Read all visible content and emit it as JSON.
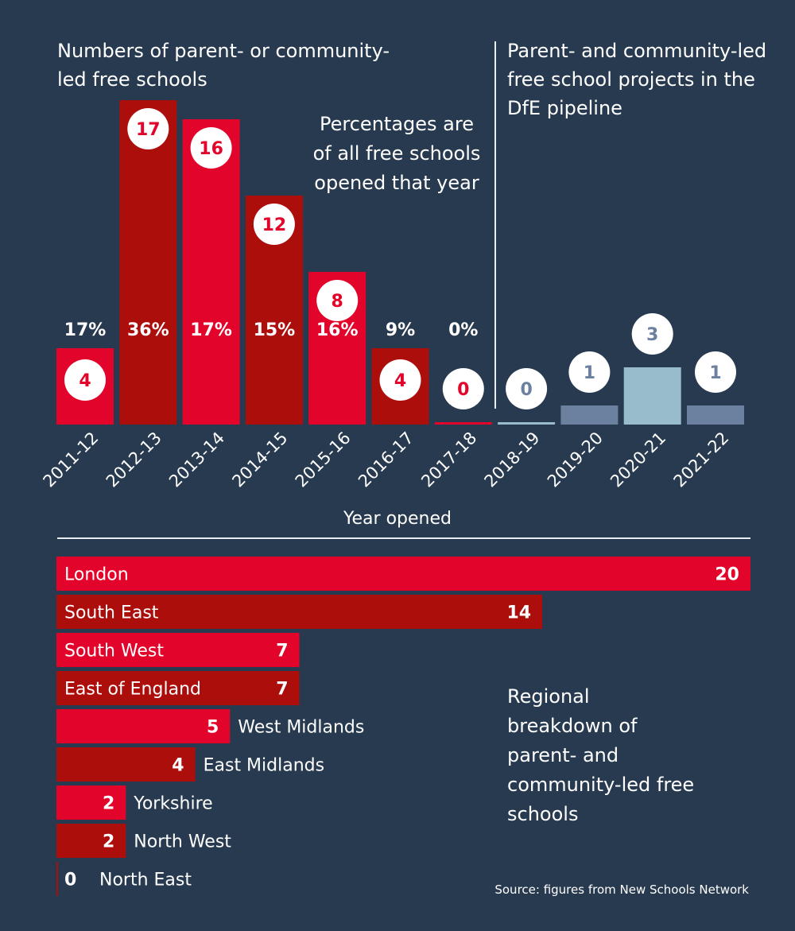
{
  "titles": {
    "left": "Numbers of parent- or community-led free schools",
    "right": "Parent- and community-led free school projects in the DfE pipeline",
    "note": "Percentages are of all free schools opened that year",
    "region_note": "Regional breakdown of parent- and community-led free schools",
    "source": "Source: figures from New Schools Network"
  },
  "colors": {
    "background": "#283a4f",
    "red": "#e2042a",
    "dark_red": "#ab0e0b",
    "pipeline_dark": "#6c81a0",
    "pipeline_light": "#98bccb",
    "circle": "#ffffff"
  },
  "chart_data": [
    {
      "type": "bar",
      "title": "Numbers of parent- or community-led free schools",
      "xlabel": "Year opened",
      "ylabel": "",
      "categories": [
        "2011-12",
        "2012-13",
        "2013-14",
        "2014-15",
        "2015-16",
        "2016-17",
        "2017-18",
        "2018-19",
        "2019-20",
        "2020-21",
        "2021-22"
      ],
      "series": [
        {
          "name": "Opened",
          "values": [
            4,
            17,
            16,
            12,
            8,
            4,
            0,
            null,
            null,
            null,
            null
          ]
        },
        {
          "name": "Pipeline",
          "values": [
            null,
            null,
            null,
            null,
            null,
            null,
            null,
            0,
            1,
            3,
            1
          ]
        }
      ],
      "percentages": [
        "17%",
        "36%",
        "17%",
        "15%",
        "16%",
        "9%",
        "0%",
        null,
        null,
        null,
        null
      ],
      "value_labels": [
        "4",
        "17",
        "16",
        "12",
        "8",
        "4",
        "0",
        "0",
        "1",
        "3",
        "1"
      ],
      "ylim": [
        0,
        17
      ],
      "grid": false
    },
    {
      "type": "bar",
      "orientation": "horizontal",
      "title": "Regional breakdown of parent- and community-led free schools",
      "categories": [
        "London",
        "South East",
        "South West",
        "East of England",
        "West Midlands",
        "East Midlands",
        "Yorkshire",
        "North West",
        "North East"
      ],
      "values": [
        20,
        14,
        7,
        7,
        5,
        4,
        2,
        2,
        0
      ],
      "value_labels": [
        "20",
        "14",
        "7",
        "7",
        "5",
        "4",
        "2",
        "2",
        "0"
      ],
      "xlim": [
        0,
        20
      ],
      "grid": false
    }
  ]
}
